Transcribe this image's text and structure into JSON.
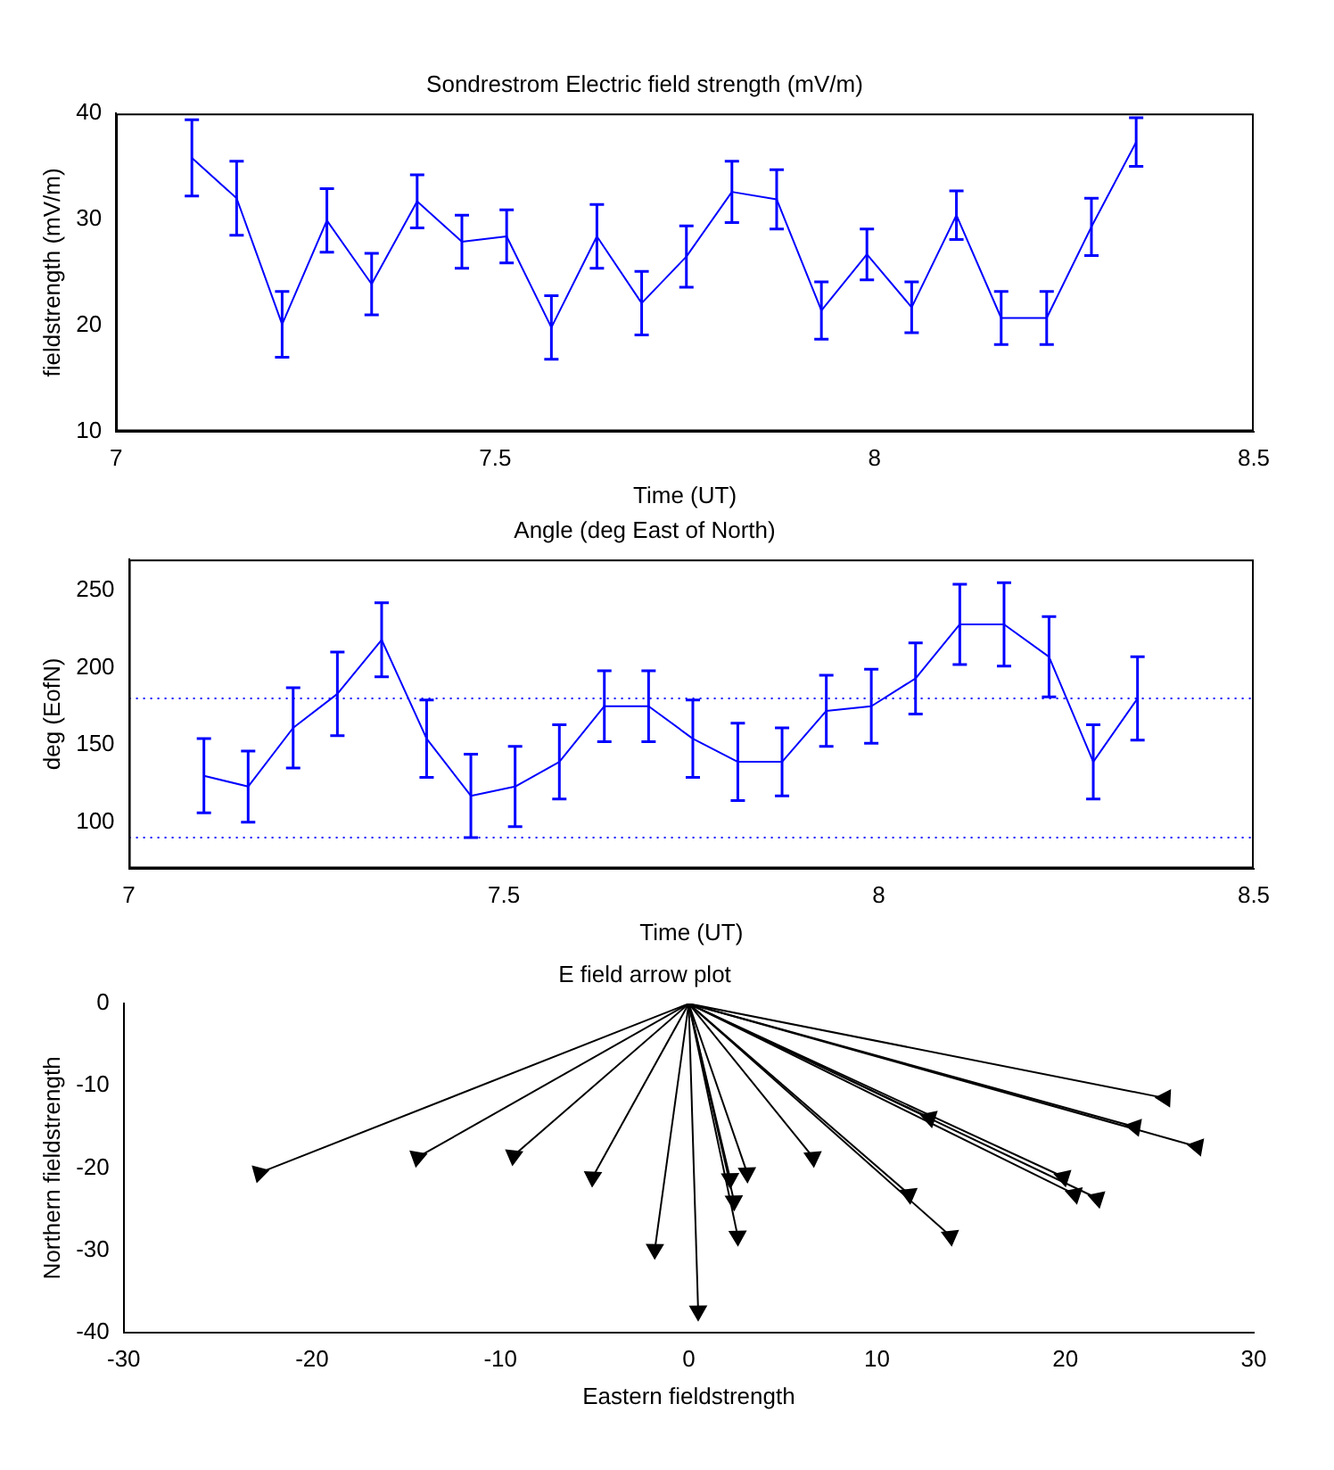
{
  "chart_data": [
    {
      "type": "line",
      "title": "Sondrestrom Electric field strength (mV/m)",
      "xlabel": "Time (UT)",
      "ylabel": "fieldstrength (mV/m)",
      "x": [
        7.1,
        7.159,
        7.219,
        7.278,
        7.337,
        7.397,
        7.456,
        7.515,
        7.574,
        7.634,
        7.693,
        7.752,
        7.812,
        7.871,
        7.93,
        7.99,
        8.049,
        8.108,
        8.167,
        8.227,
        8.286,
        8.345
      ],
      "values": [
        35.8,
        32.0,
        20.1,
        29.9,
        23.9,
        31.7,
        27.9,
        28.4,
        19.8,
        28.4,
        22.1,
        26.5,
        32.6,
        31.9,
        21.4,
        26.7,
        21.7,
        30.4,
        20.7,
        20.7,
        29.3,
        37.3
      ],
      "errors": [
        3.6,
        3.5,
        3.1,
        3.0,
        2.9,
        2.5,
        2.5,
        2.5,
        3.0,
        3.0,
        3.0,
        2.9,
        2.9,
        2.8,
        2.7,
        2.4,
        2.4,
        2.3,
        2.5,
        2.5,
        2.7,
        2.3
      ],
      "color": "#0000ff",
      "xlim": [
        7,
        8.5
      ],
      "xticks": [
        7,
        7.5,
        8,
        8.5
      ],
      "ylim": [
        10,
        40
      ],
      "yticks": [
        10,
        20,
        30,
        40
      ],
      "marker": "none",
      "line_style": "solid"
    },
    {
      "type": "line",
      "title": "Angle (deg East of North)",
      "xlabel": "Time (UT)",
      "ylabel": "deg (EofN)",
      "x": [
        7.1,
        7.159,
        7.219,
        7.278,
        7.337,
        7.397,
        7.456,
        7.515,
        7.574,
        7.634,
        7.693,
        7.752,
        7.812,
        7.871,
        7.93,
        7.99,
        8.049,
        8.108,
        8.167,
        8.227,
        8.286,
        8.345
      ],
      "values": [
        130,
        123,
        161,
        183,
        218,
        154,
        117,
        123,
        139,
        175,
        175,
        154,
        139,
        139,
        172,
        175,
        193,
        228,
        228,
        207,
        139,
        180
      ],
      "errors": [
        24,
        23,
        26,
        27,
        24,
        25,
        27,
        26,
        24,
        23,
        23,
        25,
        25,
        22,
        23,
        24,
        23,
        26,
        27,
        26,
        24,
        27
      ],
      "color": "#0000ff",
      "xlim": [
        7,
        8.5
      ],
      "xticks": [
        7,
        7.5,
        8,
        8.5
      ],
      "ylim": [
        70,
        270
      ],
      "yticks": [
        100,
        150,
        200,
        250
      ],
      "marker": "none",
      "line_style": "solid",
      "ref_lines": [
        {
          "axis": "y",
          "value": 180,
          "color": "#0000ff",
          "line_style": "dotted"
        },
        {
          "axis": "y",
          "value": 90,
          "color": "#0000ff",
          "line_style": "dotted"
        }
      ]
    },
    {
      "type": "line",
      "title": "E field arrow plot",
      "xlabel": "Eastern fieldstrength",
      "ylabel": "Northern fieldstrength",
      "xlim": [
        -30,
        30
      ],
      "xticks": [
        -30,
        -20,
        -10,
        0,
        10,
        20,
        30
      ],
      "ylim": [
        -40,
        0
      ],
      "yticks": [
        -40,
        -30,
        -20,
        -10,
        0
      ],
      "marker": "triangle",
      "line_style": "solid",
      "series": [
        {
          "color": "#000000",
          "x": [
            0,
            -22.8
          ],
          "values": [
            0,
            -20.6
          ]
        },
        {
          "color": "#000000",
          "x": [
            0,
            -14.4
          ],
          "values": [
            0,
            -18.7
          ]
        },
        {
          "color": "#000000",
          "x": [
            0,
            -9.3
          ],
          "values": [
            0,
            -18.5
          ]
        },
        {
          "color": "#000000",
          "x": [
            0,
            -5.1
          ],
          "values": [
            0,
            -21.1
          ]
        },
        {
          "color": "#000000",
          "x": [
            0,
            -1.8
          ],
          "values": [
            0,
            -29.9
          ]
        },
        {
          "color": "#000000",
          "x": [
            0,
            0.5
          ],
          "values": [
            0,
            -37.4
          ]
        },
        {
          "color": "#000000",
          "x": [
            0,
            2.2
          ],
          "values": [
            0,
            -21.3
          ]
        },
        {
          "color": "#000000",
          "x": [
            0,
            3.1
          ],
          "values": [
            0,
            -20.6
          ]
        },
        {
          "color": "#000000",
          "x": [
            0,
            2.4
          ],
          "values": [
            0,
            -24.0
          ]
        },
        {
          "color": "#000000",
          "x": [
            0,
            2.6
          ],
          "values": [
            0,
            -28.3
          ]
        },
        {
          "color": "#000000",
          "x": [
            0,
            6.6
          ],
          "values": [
            0,
            -18.7
          ]
        },
        {
          "color": "#000000",
          "x": [
            0,
            11.7
          ],
          "values": [
            0,
            -23.2
          ]
        },
        {
          "color": "#000000",
          "x": [
            0,
            13.9
          ],
          "values": [
            0,
            -28.3
          ]
        },
        {
          "color": "#000000",
          "x": [
            0,
            12.8
          ],
          "values": [
            0,
            -13.9
          ]
        },
        {
          "color": "#000000",
          "x": [
            0,
            19.9
          ],
          "values": [
            0,
            -21.1
          ]
        },
        {
          "color": "#000000",
          "x": [
            0,
            20.5
          ],
          "values": [
            0,
            -23.2
          ]
        },
        {
          "color": "#000000",
          "x": [
            0,
            21.7
          ],
          "values": [
            0,
            -23.7
          ]
        },
        {
          "color": "#000000",
          "x": [
            0,
            23.7
          ],
          "values": [
            0,
            -15.0
          ]
        },
        {
          "color": "#000000",
          "x": [
            0,
            25.3
          ],
          "values": [
            0,
            -11.5
          ]
        },
        {
          "color": "#000000",
          "x": [
            0,
            27.0
          ],
          "values": [
            0,
            -17.4
          ]
        }
      ]
    }
  ]
}
